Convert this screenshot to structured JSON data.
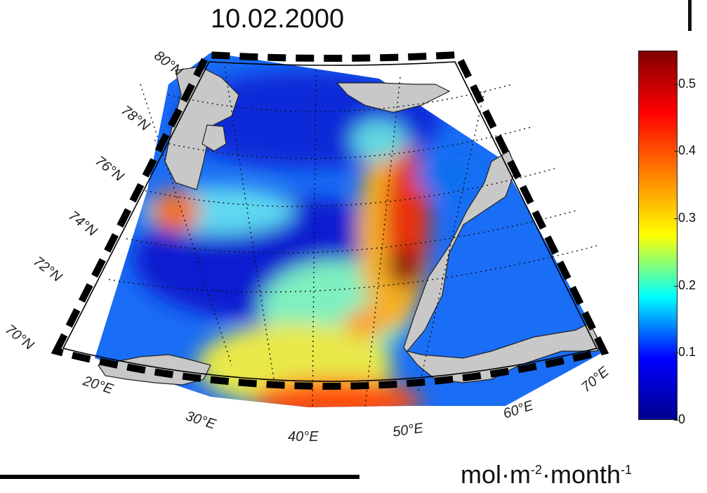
{
  "title": "10.02.2000",
  "map": {
    "lat_labels": [
      "70°N",
      "72°N",
      "74°N",
      "76°N",
      "78°N",
      "80°N"
    ],
    "lon_labels": [
      "20°E",
      "30°E",
      "40°E",
      "50°E",
      "60°E",
      "70°E"
    ]
  },
  "colorbar": {
    "ticks": [
      "0",
      "0.1",
      "0.2",
      "0.3",
      "0.4",
      "0.5"
    ],
    "min": 0,
    "max": 0.55,
    "colormap": "jet",
    "colors": [
      "#00008f",
      "#0000ff",
      "#00ffff",
      "#ffff00",
      "#ff8000",
      "#ff0000",
      "#800000"
    ]
  },
  "units": {
    "prefix": "mol·m",
    "e1": "-2",
    "mid": "·month",
    "e2": "-1"
  }
}
